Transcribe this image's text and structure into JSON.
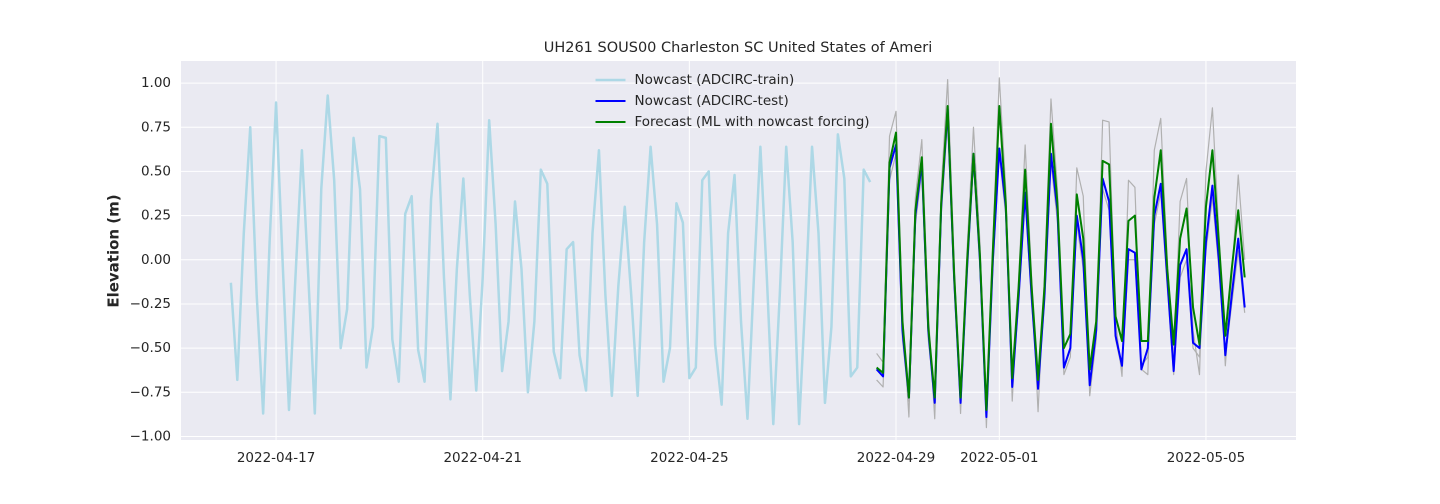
{
  "chart_data": {
    "type": "line",
    "title": "UH261 SOUS00 Charleston SC United States of Ameri",
    "ylabel": "Elevation (m)",
    "grid": true,
    "legend": "upper center",
    "xlim": [
      "2022-04-15 03:50",
      "2022-05-06 17:50"
    ],
    "xticks": [
      "2022-04-17",
      "2022-04-21",
      "2022-04-25",
      "2022-04-29",
      "2022-05-01",
      "2022-05-05"
    ],
    "ylim": [
      -1.02,
      1.125
    ],
    "yticks": [
      {
        "value": -1,
        "label": "−1.00"
      },
      {
        "value": -0.75,
        "label": "−0.75"
      },
      {
        "value": -0.5,
        "label": "−0.50"
      },
      {
        "value": -0.25,
        "label": "−0.25"
      },
      {
        "value": 0,
        "label": "0.00"
      },
      {
        "value": 0.25,
        "label": "0.25"
      },
      {
        "value": 0.5,
        "label": "0.50"
      },
      {
        "value": 0.75,
        "label": "0.75"
      },
      {
        "value": 1,
        "label": "1.00"
      }
    ],
    "series": [
      {
        "name": "Nowcast (ADCIRC-train)",
        "color": "#add8e6",
        "width": 2.5,
        "x": [
          "2022-04-16 03:00",
          "2022-04-16 06:00",
          "2022-04-16 09:00",
          "2022-04-16 12:00",
          "2022-04-16 15:00",
          "2022-04-16 18:00",
          "2022-04-16 21:00",
          "2022-04-17 00:00",
          "2022-04-17 03:00",
          "2022-04-17 06:00",
          "2022-04-17 09:00",
          "2022-04-17 12:00",
          "2022-04-17 15:00",
          "2022-04-17 18:00",
          "2022-04-17 21:00",
          "2022-04-18 00:00",
          "2022-04-18 03:00",
          "2022-04-18 06:00",
          "2022-04-18 09:00",
          "2022-04-18 12:00",
          "2022-04-18 15:00",
          "2022-04-18 18:00",
          "2022-04-18 21:00",
          "2022-04-19 00:00",
          "2022-04-19 03:00",
          "2022-04-19 06:00",
          "2022-04-19 09:00",
          "2022-04-19 12:00",
          "2022-04-19 15:00",
          "2022-04-19 18:00",
          "2022-04-19 21:00",
          "2022-04-20 00:00",
          "2022-04-20 03:00",
          "2022-04-20 06:00",
          "2022-04-20 09:00",
          "2022-04-20 12:00",
          "2022-04-20 15:00",
          "2022-04-20 18:00",
          "2022-04-20 21:00",
          "2022-04-21 00:00",
          "2022-04-21 03:00",
          "2022-04-21 06:00",
          "2022-04-21 09:00",
          "2022-04-21 12:00",
          "2022-04-21 15:00",
          "2022-04-21 18:00",
          "2022-04-21 21:00",
          "2022-04-22 00:00",
          "2022-04-22 03:00",
          "2022-04-22 06:00",
          "2022-04-22 09:00",
          "2022-04-22 12:00",
          "2022-04-22 15:00",
          "2022-04-22 18:00",
          "2022-04-22 21:00",
          "2022-04-23 00:00",
          "2022-04-23 03:00",
          "2022-04-23 06:00",
          "2022-04-23 09:00",
          "2022-04-23 12:00",
          "2022-04-23 15:00",
          "2022-04-23 18:00",
          "2022-04-23 21:00",
          "2022-04-24 00:00",
          "2022-04-24 03:00",
          "2022-04-24 06:00",
          "2022-04-24 09:00",
          "2022-04-24 12:00",
          "2022-04-24 15:00",
          "2022-04-24 18:00",
          "2022-04-24 21:00",
          "2022-04-25 00:00",
          "2022-04-25 03:00",
          "2022-04-25 06:00",
          "2022-04-25 09:00",
          "2022-04-25 12:00",
          "2022-04-25 15:00",
          "2022-04-25 18:00",
          "2022-04-25 21:00",
          "2022-04-26 00:00",
          "2022-04-26 03:00",
          "2022-04-26 06:00",
          "2022-04-26 09:00",
          "2022-04-26 12:00",
          "2022-04-26 15:00",
          "2022-04-26 18:00",
          "2022-04-26 21:00",
          "2022-04-27 00:00",
          "2022-04-27 03:00",
          "2022-04-27 06:00",
          "2022-04-27 09:00",
          "2022-04-27 12:00",
          "2022-04-27 15:00",
          "2022-04-27 18:00",
          "2022-04-27 21:00",
          "2022-04-28 00:00",
          "2022-04-28 03:00",
          "2022-04-28 06:00",
          "2022-04-28 09:00",
          "2022-04-28 12:00"
        ],
        "values": [
          -0.13,
          -0.68,
          0.15,
          0.75,
          -0.2,
          -0.87,
          0.1,
          0.89,
          0.0,
          -0.85,
          -0.1,
          0.62,
          -0.1,
          -0.87,
          0.4,
          0.93,
          0.45,
          -0.5,
          -0.28,
          0.69,
          0.4,
          -0.61,
          -0.38,
          0.7,
          0.69,
          -0.45,
          -0.69,
          0.26,
          0.36,
          -0.51,
          -0.69,
          0.34,
          0.77,
          -0.1,
          -0.79,
          -0.05,
          0.46,
          -0.2,
          -0.74,
          -0.1,
          0.79,
          0.2,
          -0.63,
          -0.35,
          0.33,
          -0.05,
          -0.75,
          -0.35,
          0.51,
          0.43,
          -0.52,
          -0.67,
          0.06,
          0.1,
          -0.54,
          -0.74,
          0.15,
          0.62,
          -0.2,
          -0.77,
          -0.15,
          0.3,
          -0.2,
          -0.77,
          0.1,
          0.64,
          0.2,
          -0.69,
          -0.5,
          0.32,
          0.21,
          -0.67,
          -0.61,
          0.45,
          0.5,
          -0.48,
          -0.82,
          0.15,
          0.48,
          -0.35,
          -0.9,
          -0.1,
          0.64,
          -0.1,
          -0.93,
          -0.2,
          0.64,
          0.1,
          -0.93,
          -0.2,
          0.64,
          0.15,
          -0.81,
          -0.38,
          0.71,
          0.46,
          -0.66,
          -0.61,
          0.51,
          0.44
        ]
      },
      {
        "color": "#b0b0b0",
        "width": 1.2,
        "x": [
          "2022-04-28 15:00",
          "2022-04-28 18:00",
          "2022-04-28 21:00",
          "2022-04-29 00:00",
          "2022-04-29 03:00",
          "2022-04-29 06:00",
          "2022-04-29 09:00",
          "2022-04-29 12:00",
          "2022-04-29 15:00",
          "2022-04-29 18:00",
          "2022-04-29 21:00",
          "2022-04-30 00:00",
          "2022-04-30 03:00",
          "2022-04-30 06:00",
          "2022-04-30 09:00",
          "2022-04-30 12:00",
          "2022-04-30 15:00",
          "2022-04-30 18:00",
          "2022-04-30 21:00",
          "2022-05-01 00:00",
          "2022-05-01 03:00",
          "2022-05-01 06:00",
          "2022-05-01 09:00",
          "2022-05-01 12:00",
          "2022-05-01 15:00",
          "2022-05-01 18:00",
          "2022-05-01 21:00",
          "2022-05-02 00:00",
          "2022-05-02 03:00",
          "2022-05-02 06:00",
          "2022-05-02 09:00",
          "2022-05-02 12:00",
          "2022-05-02 15:00",
          "2022-05-02 18:00",
          "2022-05-02 21:00",
          "2022-05-03 00:00",
          "2022-05-03 03:00",
          "2022-05-03 06:00",
          "2022-05-03 09:00",
          "2022-05-03 12:00",
          "2022-05-03 15:00",
          "2022-05-03 18:00",
          "2022-05-03 21:00",
          "2022-05-04 00:00",
          "2022-05-04 03:00",
          "2022-05-04 06:00",
          "2022-05-04 09:00",
          "2022-05-04 12:00",
          "2022-05-04 15:00",
          "2022-05-04 18:00",
          "2022-05-04 21:00",
          "2022-05-05 00:00",
          "2022-05-05 03:00",
          "2022-05-05 06:00",
          "2022-05-05 09:00",
          "2022-05-05 12:00",
          "2022-05-05 15:00",
          "2022-05-05 18:00"
        ],
        "values": [
          -0.53,
          -0.58,
          0.7,
          0.84,
          -0.3,
          -0.89,
          0.35,
          0.68,
          -0.3,
          -0.9,
          0.4,
          1.02,
          0.0,
          -0.87,
          0.05,
          0.75,
          0.1,
          -0.95,
          0.1,
          1.03,
          0.4,
          -0.8,
          -0.1,
          0.65,
          -0.1,
          -0.86,
          -0.1,
          0.91,
          0.4,
          -0.65,
          -0.55,
          0.52,
          0.36,
          -0.77,
          -0.45,
          0.79,
          0.78,
          -0.35,
          -0.66,
          0.45,
          0.41,
          -0.62,
          -0.65,
          0.62,
          0.8,
          0.0,
          -0.57,
          0.33,
          0.46,
          -0.4,
          -0.65,
          0.5,
          0.86,
          0.15,
          -0.6,
          -0.1,
          0.48,
          0.0
        ]
      },
      {
        "color": "#b0b0b0",
        "width": 1.2,
        "x": [
          "2022-04-28 15:00",
          "2022-04-28 18:00",
          "2022-04-28 21:00",
          "2022-04-29 00:00",
          "2022-04-29 03:00",
          "2022-04-29 06:00",
          "2022-04-29 09:00",
          "2022-04-29 12:00",
          "2022-04-29 15:00",
          "2022-04-29 18:00",
          "2022-04-29 21:00",
          "2022-04-30 00:00",
          "2022-04-30 03:00",
          "2022-04-30 06:00",
          "2022-04-30 09:00",
          "2022-04-30 12:00",
          "2022-04-30 15:00",
          "2022-04-30 18:00",
          "2022-04-30 21:00",
          "2022-05-01 00:00",
          "2022-05-01 03:00",
          "2022-05-01 06:00",
          "2022-05-01 09:00",
          "2022-05-01 12:00",
          "2022-05-01 15:00",
          "2022-05-01 18:00",
          "2022-05-01 21:00",
          "2022-05-02 00:00",
          "2022-05-02 03:00",
          "2022-05-02 06:00",
          "2022-05-02 09:00",
          "2022-05-02 12:00",
          "2022-05-02 15:00",
          "2022-05-02 18:00",
          "2022-05-02 21:00",
          "2022-05-03 00:00",
          "2022-05-03 03:00",
          "2022-05-03 06:00",
          "2022-05-03 09:00",
          "2022-05-03 12:00",
          "2022-05-03 15:00",
          "2022-05-03 18:00",
          "2022-05-03 21:00",
          "2022-05-04 00:00",
          "2022-05-04 03:00",
          "2022-05-04 06:00",
          "2022-05-04 09:00",
          "2022-05-04 12:00",
          "2022-05-04 15:00",
          "2022-05-04 18:00",
          "2022-05-04 21:00",
          "2022-05-05 00:00",
          "2022-05-05 03:00",
          "2022-05-05 06:00",
          "2022-05-05 09:00",
          "2022-05-05 12:00",
          "2022-05-05 15:00",
          "2022-05-05 18:00"
        ],
        "values": [
          -0.68,
          -0.72,
          0.45,
          0.6,
          -0.45,
          -0.8,
          0.2,
          0.5,
          -0.45,
          -0.8,
          0.25,
          0.8,
          -0.15,
          -0.8,
          -0.1,
          0.55,
          -0.05,
          -0.88,
          -0.05,
          0.6,
          0.25,
          -0.7,
          -0.25,
          0.35,
          -0.25,
          -0.7,
          -0.25,
          0.55,
          0.22,
          -0.62,
          -0.5,
          0.2,
          -0.05,
          -0.7,
          -0.45,
          0.4,
          0.28,
          -0.45,
          -0.62,
          0.0,
          0.0,
          -0.6,
          -0.55,
          0.2,
          0.38,
          -0.15,
          -0.65,
          -0.1,
          0.0,
          -0.5,
          -0.55,
          0.05,
          0.35,
          -0.05,
          -0.55,
          -0.25,
          0.05,
          -0.3
        ]
      },
      {
        "name": "Nowcast (ADCIRC-test)",
        "color": "#0000ff",
        "width": 2,
        "x": [
          "2022-04-28 15:00",
          "2022-04-28 18:00",
          "2022-04-28 21:00",
          "2022-04-29 00:00",
          "2022-04-29 03:00",
          "2022-04-29 06:00",
          "2022-04-29 09:00",
          "2022-04-29 12:00",
          "2022-04-29 15:00",
          "2022-04-29 18:00",
          "2022-04-29 21:00",
          "2022-04-30 00:00",
          "2022-04-30 03:00",
          "2022-04-30 06:00",
          "2022-04-30 09:00",
          "2022-04-30 12:00",
          "2022-04-30 15:00",
          "2022-04-30 18:00",
          "2022-04-30 21:00",
          "2022-05-01 00:00",
          "2022-05-01 03:00",
          "2022-05-01 06:00",
          "2022-05-01 09:00",
          "2022-05-01 12:00",
          "2022-05-01 15:00",
          "2022-05-01 18:00",
          "2022-05-01 21:00",
          "2022-05-02 00:00",
          "2022-05-02 03:00",
          "2022-05-02 06:00",
          "2022-05-02 09:00",
          "2022-05-02 12:00",
          "2022-05-02 15:00",
          "2022-05-02 18:00",
          "2022-05-02 21:00",
          "2022-05-03 00:00",
          "2022-05-03 03:00",
          "2022-05-03 06:00",
          "2022-05-03 09:00",
          "2022-05-03 12:00",
          "2022-05-03 15:00",
          "2022-05-03 18:00",
          "2022-05-03 21:00",
          "2022-05-04 00:00",
          "2022-05-04 03:00",
          "2022-05-04 06:00",
          "2022-05-04 09:00",
          "2022-05-04 12:00",
          "2022-05-04 15:00",
          "2022-05-04 18:00",
          "2022-05-04 21:00",
          "2022-05-05 00:00",
          "2022-05-05 03:00",
          "2022-05-05 06:00",
          "2022-05-05 09:00",
          "2022-05-05 12:00",
          "2022-05-05 15:00",
          "2022-05-05 18:00"
        ],
        "values": [
          -0.62,
          -0.66,
          0.52,
          0.65,
          -0.4,
          -0.78,
          0.25,
          0.55,
          -0.4,
          -0.81,
          0.3,
          0.85,
          -0.1,
          -0.81,
          -0.05,
          0.6,
          0.0,
          -0.89,
          0.0,
          0.63,
          0.3,
          -0.72,
          -0.2,
          0.38,
          -0.2,
          -0.73,
          -0.2,
          0.6,
          0.28,
          -0.61,
          -0.5,
          0.25,
          0.0,
          -0.71,
          -0.4,
          0.46,
          0.33,
          -0.43,
          -0.6,
          0.06,
          0.04,
          -0.62,
          -0.5,
          0.25,
          0.43,
          -0.1,
          -0.63,
          -0.03,
          0.06,
          -0.47,
          -0.5,
          0.1,
          0.42,
          0.0,
          -0.54,
          -0.2,
          0.12,
          -0.27
        ]
      },
      {
        "name": "Forecast (ML with nowcast forcing)",
        "color": "#008000",
        "width": 2,
        "x": [
          "2022-04-28 15:00",
          "2022-04-28 18:00",
          "2022-04-28 21:00",
          "2022-04-29 00:00",
          "2022-04-29 03:00",
          "2022-04-29 06:00",
          "2022-04-29 09:00",
          "2022-04-29 12:00",
          "2022-04-29 15:00",
          "2022-04-29 18:00",
          "2022-04-29 21:00",
          "2022-04-30 00:00",
          "2022-04-30 03:00",
          "2022-04-30 06:00",
          "2022-04-30 09:00",
          "2022-04-30 12:00",
          "2022-04-30 15:00",
          "2022-04-30 18:00",
          "2022-04-30 21:00",
          "2022-05-01 00:00",
          "2022-05-01 03:00",
          "2022-05-01 06:00",
          "2022-05-01 09:00",
          "2022-05-01 12:00",
          "2022-05-01 15:00",
          "2022-05-01 18:00",
          "2022-05-01 21:00",
          "2022-05-02 00:00",
          "2022-05-02 03:00",
          "2022-05-02 06:00",
          "2022-05-02 09:00",
          "2022-05-02 12:00",
          "2022-05-02 15:00",
          "2022-05-02 18:00",
          "2022-05-02 21:00",
          "2022-05-03 00:00",
          "2022-05-03 03:00",
          "2022-05-03 06:00",
          "2022-05-03 09:00",
          "2022-05-03 12:00",
          "2022-05-03 15:00",
          "2022-05-03 18:00",
          "2022-05-03 21:00",
          "2022-05-04 00:00",
          "2022-05-04 03:00",
          "2022-05-04 06:00",
          "2022-05-04 09:00",
          "2022-05-04 12:00",
          "2022-05-04 15:00",
          "2022-05-04 18:00",
          "2022-05-04 21:00",
          "2022-05-05 00:00",
          "2022-05-05 03:00",
          "2022-05-05 06:00",
          "2022-05-05 09:00",
          "2022-05-05 12:00",
          "2022-05-05 15:00",
          "2022-05-05 18:00"
        ],
        "values": [
          -0.61,
          -0.64,
          0.55,
          0.72,
          -0.35,
          -0.78,
          0.28,
          0.58,
          -0.38,
          -0.78,
          0.32,
          0.87,
          -0.08,
          -0.78,
          -0.02,
          0.6,
          0.02,
          -0.85,
          0.05,
          0.87,
          0.32,
          -0.67,
          -0.15,
          0.51,
          -0.15,
          -0.68,
          -0.15,
          0.77,
          0.32,
          -0.5,
          -0.42,
          0.37,
          0.12,
          -0.62,
          -0.35,
          0.56,
          0.54,
          -0.32,
          -0.46,
          0.22,
          0.25,
          -0.46,
          -0.46,
          0.35,
          0.62,
          -0.05,
          -0.48,
          0.12,
          0.29,
          -0.27,
          -0.48,
          0.3,
          0.62,
          0.1,
          -0.43,
          -0.05,
          0.28,
          -0.1
        ]
      }
    ]
  }
}
